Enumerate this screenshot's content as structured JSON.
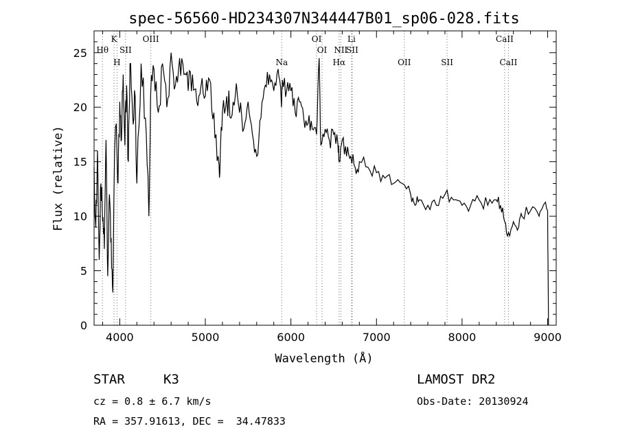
{
  "chart_data": {
    "type": "line",
    "title": "spec-56560-HD234307N344447B01_sp06-028.fits",
    "xlabel": "Wavelength (Å)",
    "ylabel": "Flux (relative)",
    "xlim": [
      3700,
      9100
    ],
    "ylim": [
      0,
      27
    ],
    "xticks": [
      "4000",
      "5000",
      "6000",
      "7000",
      "8000",
      "9000"
    ],
    "yticks": [
      "0",
      "5",
      "10",
      "15",
      "20",
      "25"
    ],
    "spectrum": {
      "x": [
        3700,
        3720,
        3740,
        3760,
        3780,
        3800,
        3820,
        3840,
        3860,
        3880,
        3900,
        3920,
        3940,
        3960,
        3980,
        4000,
        4020,
        4040,
        4060,
        4080,
        4100,
        4120,
        4150,
        4180,
        4200,
        4250,
        4300,
        4340,
        4360,
        4400,
        4450,
        4500,
        4550,
        4600,
        4650,
        4700,
        4750,
        4800,
        4850,
        4900,
        4950,
        5000,
        5050,
        5100,
        5150,
        5170,
        5200,
        5250,
        5300,
        5350,
        5400,
        5450,
        5500,
        5550,
        5600,
        5650,
        5700,
        5750,
        5800,
        5850,
        5890,
        5900,
        5950,
        6000,
        6050,
        6100,
        6150,
        6200,
        6250,
        6300,
        6330,
        6350,
        6400,
        6450,
        6500,
        6550,
        6563,
        6600,
        6650,
        6700,
        6750,
        6800,
        6900,
        7000,
        7100,
        7200,
        7300,
        7400,
        7450,
        7500,
        7600,
        7700,
        7800,
        7900,
        8000,
        8100,
        8200,
        8300,
        8400,
        8450,
        8498,
        8542,
        8600,
        8662,
        8700,
        8800,
        8900,
        8950,
        9000,
        9010
      ],
      "y": [
        14.5,
        9.0,
        16.0,
        6.0,
        13.0,
        9.5,
        7.0,
        17.0,
        4.5,
        12.0,
        8.0,
        3.0,
        16.0,
        18.5,
        13.0,
        20.5,
        17.0,
        23.0,
        16.5,
        22.0,
        15.0,
        24.0,
        19.5,
        21.0,
        13.0,
        24.0,
        19.0,
        10.0,
        21.0,
        23.5,
        19.5,
        24.0,
        20.0,
        25.0,
        22.0,
        24.5,
        23.0,
        21.5,
        23.0,
        20.5,
        22.0,
        21.0,
        22.5,
        19.5,
        15.5,
        14.0,
        19.5,
        21.0,
        19.0,
        21.0,
        19.5,
        18.0,
        20.5,
        17.5,
        15.5,
        19.0,
        22.0,
        23.0,
        21.5,
        23.5,
        20.0,
        22.5,
        21.5,
        21.5,
        19.5,
        20.5,
        19.0,
        18.5,
        18.0,
        17.5,
        24.5,
        16.5,
        18.0,
        17.0,
        17.5,
        16.5,
        15.0,
        17.0,
        15.5,
        15.5,
        14.5,
        15.0,
        14.5,
        14.0,
        13.5,
        13.0,
        13.0,
        12.0,
        11.0,
        11.5,
        11.0,
        11.0,
        12.0,
        11.5,
        11.0,
        11.0,
        11.5,
        11.0,
        11.5,
        11.0,
        9.5,
        8.5,
        9.5,
        9.0,
        10.0,
        10.5,
        10.0,
        11.0,
        10.5,
        0.0
      ]
    },
    "spectral_lines": [
      {
        "label": "Hθ",
        "wavelength": 3798,
        "row": 1
      },
      {
        "label": "K",
        "wavelength": 3934,
        "row": 0
      },
      {
        "label": "H",
        "wavelength": 3968,
        "row": 2
      },
      {
        "label": "SII",
        "wavelength": 4068,
        "row": 1
      },
      {
        "label": "OIII",
        "wavelength": 4363,
        "row": 0
      },
      {
        "label": "Na",
        "wavelength": 5893,
        "row": 2
      },
      {
        "label": "OI",
        "wavelength": 6300,
        "row": 0
      },
      {
        "label": "OI",
        "wavelength": 6364,
        "row": 1
      },
      {
        "label": "Li",
        "wavelength": 6708,
        "row": 0
      },
      {
        "label": "NII",
        "wavelength": 6583,
        "row": 1
      },
      {
        "label": "SII",
        "wavelength": 6717,
        "row": 1
      },
      {
        "label": "Hα",
        "wavelength": 6563,
        "row": 2
      },
      {
        "label": "OII",
        "wavelength": 7325,
        "row": 2
      },
      {
        "label": "SII",
        "wavelength": 7825,
        "row": 2
      },
      {
        "label": "CaII",
        "wavelength": 8498,
        "row": 0
      },
      {
        "label": "CaII",
        "wavelength": 8542,
        "row": 2
      }
    ]
  },
  "info": {
    "object_class": "STAR",
    "subclass": "K3",
    "survey": "LAMOST DR2",
    "cz": "cz = 0.8 ± 6.7 km/s",
    "obs_date": "Obs-Date: 20130924",
    "radec": "RA = 357.91613, DEC =  34.47833"
  }
}
